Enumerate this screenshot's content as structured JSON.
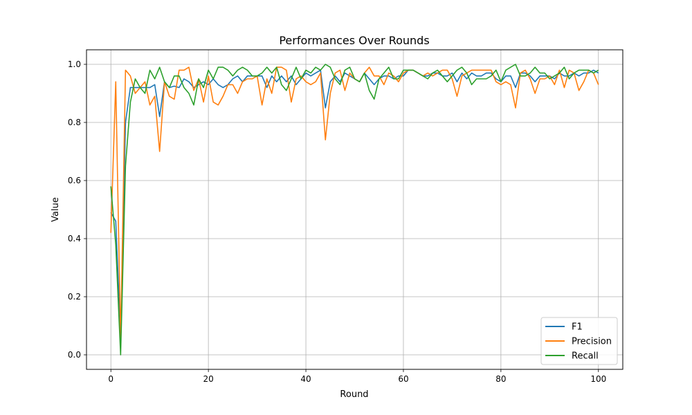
{
  "chart_data": {
    "type": "line",
    "title": "Performances Over Rounds",
    "xlabel": "Round",
    "ylabel": "Value",
    "xlim": [
      -5,
      105
    ],
    "ylim": [
      -0.05,
      1.05
    ],
    "xticks": [
      0,
      20,
      40,
      60,
      80,
      100
    ],
    "xtick_labels": [
      "0",
      "20",
      "40",
      "60",
      "80",
      "100"
    ],
    "yticks": [
      0.0,
      0.2,
      0.4,
      0.6,
      0.8,
      1.0
    ],
    "ytick_labels": [
      "0.0",
      "0.2",
      "0.4",
      "0.6",
      "0.8",
      "1.0"
    ],
    "grid": true,
    "legend_position": "lower-right",
    "x": [
      0,
      1,
      2,
      3,
      4,
      5,
      6,
      7,
      8,
      9,
      10,
      11,
      12,
      13,
      14,
      15,
      16,
      17,
      18,
      19,
      20,
      21,
      22,
      23,
      24,
      25,
      26,
      27,
      28,
      29,
      30,
      31,
      32,
      33,
      34,
      35,
      36,
      37,
      38,
      39,
      40,
      41,
      42,
      43,
      44,
      45,
      46,
      47,
      48,
      49,
      50,
      51,
      52,
      53,
      54,
      55,
      56,
      57,
      58,
      59,
      60,
      61,
      62,
      63,
      64,
      65,
      66,
      67,
      68,
      69,
      70,
      71,
      72,
      73,
      74,
      75,
      76,
      77,
      78,
      79,
      80,
      81,
      82,
      83,
      84,
      85,
      86,
      87,
      88,
      89,
      90,
      91,
      92,
      93,
      94,
      95,
      96,
      97,
      98,
      99,
      100
    ],
    "series": [
      {
        "name": "F1",
        "color": "#1f77b4",
        "values": [
          0.49,
          0.46,
          0.06,
          0.8,
          0.92,
          0.92,
          0.92,
          0.92,
          0.92,
          0.93,
          0.82,
          0.94,
          0.92,
          0.925,
          0.92,
          0.95,
          0.94,
          0.92,
          0.93,
          0.94,
          0.93,
          0.95,
          0.93,
          0.92,
          0.93,
          0.95,
          0.96,
          0.94,
          0.96,
          0.96,
          0.96,
          0.96,
          0.92,
          0.96,
          0.94,
          0.96,
          0.94,
          0.96,
          0.93,
          0.95,
          0.97,
          0.96,
          0.97,
          0.98,
          0.85,
          0.94,
          0.96,
          0.94,
          0.97,
          0.96,
          0.95,
          0.94,
          0.97,
          0.95,
          0.93,
          0.95,
          0.96,
          0.96,
          0.95,
          0.96,
          0.96,
          0.98,
          0.98,
          0.97,
          0.96,
          0.96,
          0.97,
          0.97,
          0.96,
          0.96,
          0.97,
          0.94,
          0.97,
          0.95,
          0.97,
          0.96,
          0.96,
          0.97,
          0.97,
          0.95,
          0.94,
          0.96,
          0.96,
          0.92,
          0.97,
          0.97,
          0.96,
          0.94,
          0.96,
          0.96,
          0.96,
          0.95,
          0.97,
          0.96,
          0.96,
          0.97,
          0.96,
          0.97,
          0.97,
          0.98,
          0.97
        ]
      },
      {
        "name": "Precision",
        "color": "#ff7f0e",
        "values": [
          0.42,
          0.94,
          0.05,
          0.98,
          0.96,
          0.9,
          0.92,
          0.94,
          0.86,
          0.89,
          0.7,
          0.94,
          0.89,
          0.88,
          0.98,
          0.98,
          0.99,
          0.91,
          0.95,
          0.87,
          0.96,
          0.87,
          0.86,
          0.89,
          0.93,
          0.93,
          0.9,
          0.94,
          0.95,
          0.95,
          0.96,
          0.86,
          0.95,
          0.9,
          0.99,
          0.99,
          0.98,
          0.87,
          0.95,
          0.96,
          0.94,
          0.93,
          0.94,
          0.97,
          0.74,
          0.9,
          0.97,
          0.98,
          0.91,
          0.97,
          0.95,
          0.94,
          0.97,
          0.99,
          0.96,
          0.96,
          0.93,
          0.97,
          0.96,
          0.94,
          0.97,
          0.98,
          0.98,
          0.97,
          0.96,
          0.97,
          0.96,
          0.97,
          0.98,
          0.98,
          0.95,
          0.89,
          0.96,
          0.97,
          0.98,
          0.98,
          0.98,
          0.98,
          0.98,
          0.94,
          0.93,
          0.94,
          0.93,
          0.85,
          0.97,
          0.98,
          0.95,
          0.9,
          0.95,
          0.95,
          0.96,
          0.93,
          0.98,
          0.92,
          0.98,
          0.97,
          0.91,
          0.94,
          0.98,
          0.97,
          0.93
        ]
      },
      {
        "name": "Recall",
        "color": "#2ca02c",
        "values": [
          0.58,
          0.38,
          0.0,
          0.65,
          0.87,
          0.95,
          0.92,
          0.9,
          0.98,
          0.95,
          0.99,
          0.94,
          0.92,
          0.96,
          0.96,
          0.92,
          0.9,
          0.86,
          0.95,
          0.92,
          0.98,
          0.95,
          0.99,
          0.99,
          0.98,
          0.96,
          0.98,
          0.99,
          0.98,
          0.96,
          0.96,
          0.97,
          0.99,
          0.97,
          0.99,
          0.93,
          0.91,
          0.95,
          0.99,
          0.95,
          0.98,
          0.97,
          0.99,
          0.98,
          1.0,
          0.99,
          0.95,
          0.93,
          0.98,
          0.99,
          0.95,
          0.94,
          0.97,
          0.91,
          0.88,
          0.95,
          0.97,
          0.99,
          0.95,
          0.95,
          0.98,
          0.98,
          0.98,
          0.97,
          0.96,
          0.95,
          0.97,
          0.98,
          0.96,
          0.94,
          0.96,
          0.98,
          0.99,
          0.97,
          0.93,
          0.95,
          0.95,
          0.95,
          0.96,
          0.98,
          0.94,
          0.98,
          0.99,
          1.0,
          0.96,
          0.96,
          0.97,
          0.99,
          0.97,
          0.97,
          0.95,
          0.96,
          0.97,
          0.99,
          0.95,
          0.97,
          0.98,
          0.98,
          0.98,
          0.97,
          0.98
        ]
      }
    ]
  }
}
